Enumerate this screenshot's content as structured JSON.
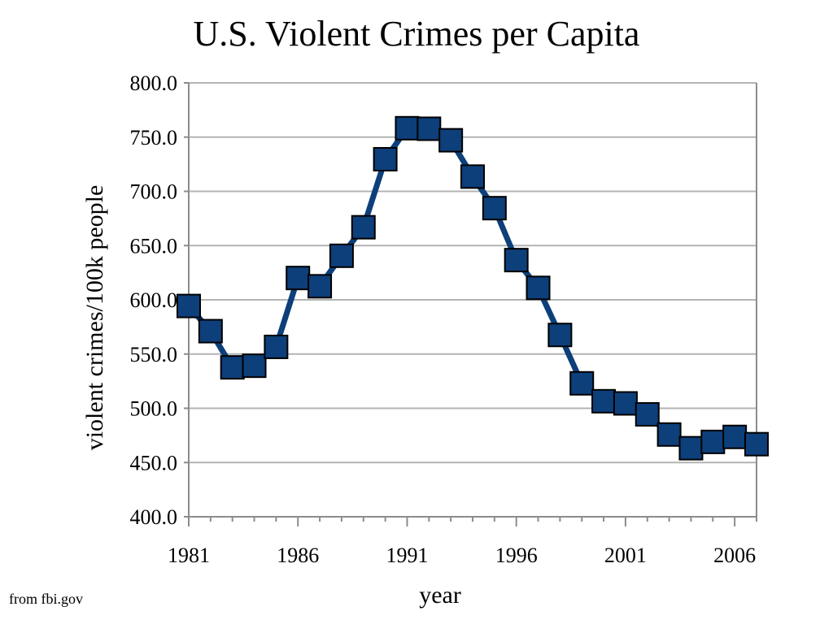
{
  "source_note": "from fbi.gov",
  "colors": {
    "line": "#0d3f7a",
    "marker_fill": "#0d3f7a",
    "marker_stroke": "#000000",
    "grid": "#b3b3b3",
    "axis": "#8c8c8c"
  },
  "chart_data": {
    "type": "line",
    "title": "U.S. Violent Crimes per Capita",
    "xlabel": "year",
    "ylabel": "violent crimes/100k people",
    "xlim": [
      1981,
      2007
    ],
    "ylim": [
      400,
      800
    ],
    "x_ticks": [
      "1981",
      "1986",
      "1991",
      "1996",
      "2001",
      "2006"
    ],
    "y_ticks": [
      "400.0",
      "450.0",
      "500.0",
      "550.0",
      "600.0",
      "650.0",
      "700.0",
      "750.0",
      "800.0"
    ],
    "grid": true,
    "legend": false,
    "marker": "square",
    "x": [
      1981,
      1982,
      1983,
      1984,
      1985,
      1986,
      1987,
      1988,
      1989,
      1990,
      1991,
      1992,
      1993,
      1994,
      1995,
      1996,
      1997,
      1998,
      1999,
      2000,
      2001,
      2002,
      2003,
      2004,
      2005,
      2006,
      2007
    ],
    "series": [
      {
        "values": [
          594.3,
          571.1,
          537.7,
          539.2,
          556.6,
          620.1,
          612.5,
          640.6,
          666.9,
          729.6,
          758.2,
          757.7,
          747.1,
          713.6,
          684.5,
          636.6,
          611.0,
          567.6,
          523.0,
          506.5,
          504.5,
          494.4,
          475.8,
          463.2,
          469.0,
          473.6,
          466.9
        ]
      }
    ]
  }
}
